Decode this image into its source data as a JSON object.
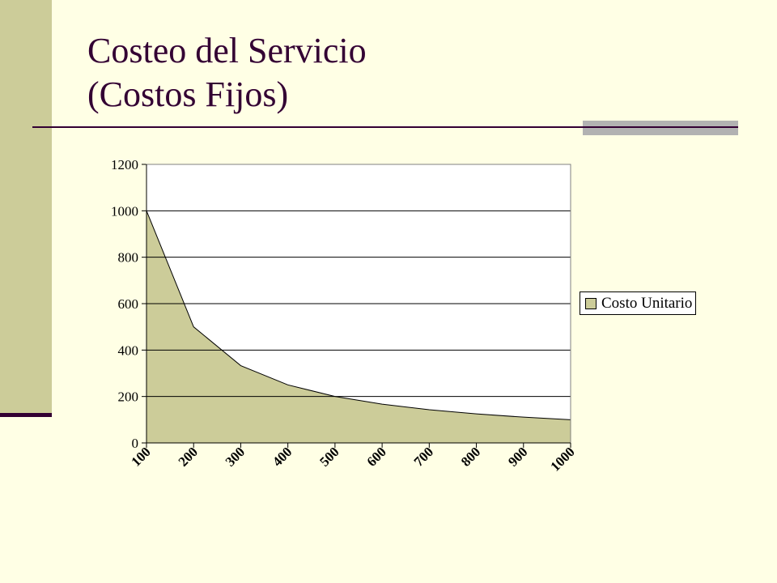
{
  "slide": {
    "title_line1": "Costeo del Servicio",
    "title_line2": "(Costos Fijos)"
  },
  "colors": {
    "background": "#FFFFE5",
    "accent": "#CCCC99",
    "title": "#330033",
    "area_fill": "#CCCC99"
  },
  "chart_data": {
    "type": "area",
    "categories": [
      "100",
      "200",
      "300",
      "400",
      "500",
      "600",
      "700",
      "800",
      "900",
      "1000"
    ],
    "series": [
      {
        "name": "Costo Unitario",
        "values": [
          1000,
          500,
          333,
          250,
          200,
          167,
          143,
          125,
          111,
          100
        ]
      }
    ],
    "ylim": [
      0,
      1200
    ],
    "yticks": [
      0,
      200,
      400,
      600,
      800,
      1000,
      1200
    ],
    "grid": true,
    "legend": "right"
  }
}
